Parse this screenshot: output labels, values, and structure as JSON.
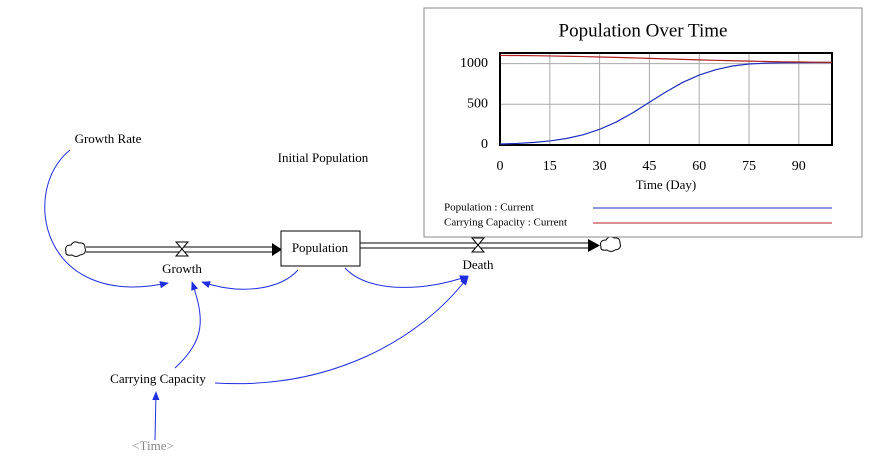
{
  "nodes": [
    "Growth Rate",
    "Initial Population",
    "Population",
    "Growth",
    "Death",
    "Carrying Capacity",
    "<Time>"
  ],
  "chart_data": {
    "type": "line",
    "title": "Population Over Time",
    "x_label": "Time (Day)",
    "x": [
      0,
      5,
      10,
      15,
      20,
      25,
      30,
      35,
      40,
      45,
      50,
      55,
      60,
      65,
      70,
      75,
      80,
      85,
      90,
      95,
      100
    ],
    "series": [
      {
        "name": "Population : Current",
        "color": "#1f2fbf",
        "values": [
          12,
          19,
          31,
          50,
          80,
          125,
          192,
          282,
          396,
          525,
          653,
          768,
          859,
          925,
          970,
          995,
          1005,
          1010,
          1012,
          1013,
          1013
        ]
      },
      {
        "name": "Carrying Capacity : Current",
        "color": "#b02020",
        "values": [
          1100,
          1099,
          1097,
          1094,
          1090,
          1086,
          1081,
          1076,
          1070,
          1064,
          1058,
          1052,
          1046,
          1040,
          1035,
          1030,
          1026,
          1022,
          1019,
          1017,
          1015
        ]
      }
    ],
    "xlim": [
      0,
      100
    ],
    "ylim": [
      0,
      1130
    ],
    "xticks": [
      0,
      15,
      30,
      45,
      60,
      75,
      90
    ],
    "yticks": [
      0,
      500,
      1000
    ],
    "grid": true
  }
}
